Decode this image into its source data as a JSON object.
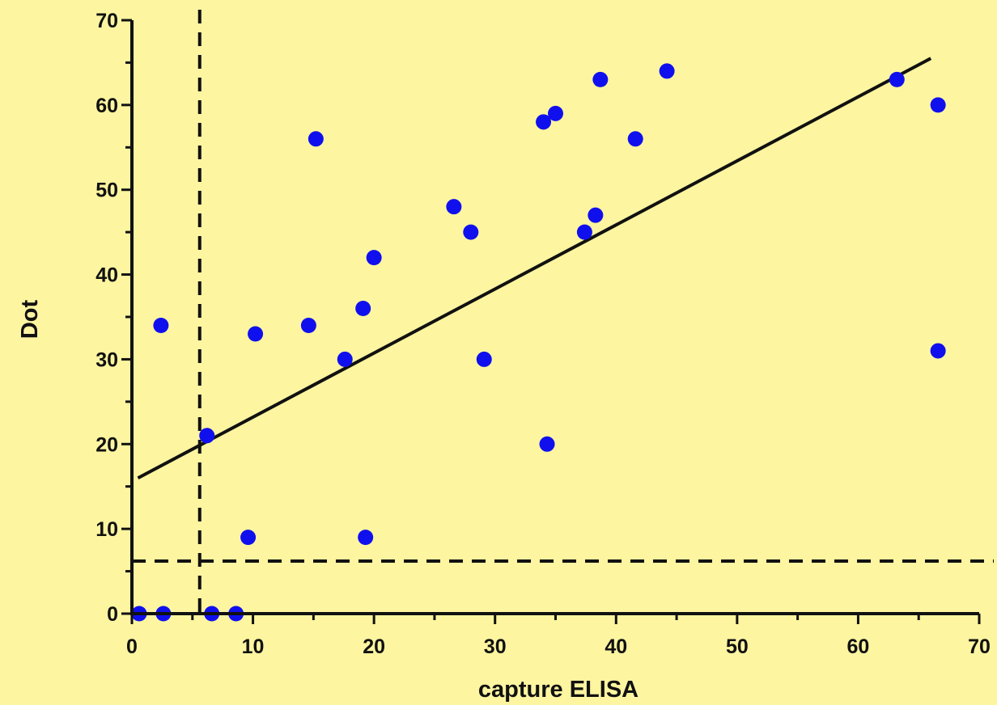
{
  "chart_data": {
    "type": "scatter",
    "title": "",
    "xlabel": "capture ELISA",
    "ylabel": "Dot",
    "xlim": [
      0,
      70
    ],
    "ylim": [
      0,
      70
    ],
    "x_ticks": [
      0,
      10,
      20,
      30,
      40,
      50,
      60,
      70
    ],
    "y_ticks": [
      0,
      10,
      20,
      30,
      40,
      50,
      60,
      70
    ],
    "x_tick_labels": [
      "0",
      "10",
      "20",
      "30",
      "40",
      "50",
      "60",
      "70"
    ],
    "y_tick_labels": [
      "0",
      "10",
      "20",
      "30",
      "40",
      "50",
      "60",
      "70"
    ],
    "grid": false,
    "legend": "none",
    "colors": {
      "background": "#fdf5a0",
      "points": "#1010ee",
      "lines": "#111111"
    },
    "points": [
      {
        "x": 0.6,
        "y": 0
      },
      {
        "x": 2.6,
        "y": 0
      },
      {
        "x": 6.6,
        "y": 0
      },
      {
        "x": 8.6,
        "y": 0
      },
      {
        "x": 2.4,
        "y": 34
      },
      {
        "x": 6.2,
        "y": 21
      },
      {
        "x": 9.6,
        "y": 9
      },
      {
        "x": 10.2,
        "y": 33
      },
      {
        "x": 14.6,
        "y": 34
      },
      {
        "x": 15.2,
        "y": 56
      },
      {
        "x": 17.6,
        "y": 30
      },
      {
        "x": 19.1,
        "y": 36
      },
      {
        "x": 19.3,
        "y": 9
      },
      {
        "x": 20.0,
        "y": 42
      },
      {
        "x": 26.6,
        "y": 48
      },
      {
        "x": 28.0,
        "y": 45
      },
      {
        "x": 29.1,
        "y": 30
      },
      {
        "x": 34.0,
        "y": 58
      },
      {
        "x": 35.0,
        "y": 59
      },
      {
        "x": 34.3,
        "y": 20
      },
      {
        "x": 37.4,
        "y": 45
      },
      {
        "x": 38.3,
        "y": 47
      },
      {
        "x": 38.7,
        "y": 63
      },
      {
        "x": 41.6,
        "y": 56
      },
      {
        "x": 44.2,
        "y": 64
      },
      {
        "x": 63.2,
        "y": 63
      },
      {
        "x": 66.6,
        "y": 60
      },
      {
        "x": 66.6,
        "y": 31
      }
    ],
    "regression_line": {
      "x1": 0.5,
      "y1": 16,
      "x2": 66,
      "y2": 65.5
    },
    "cutoff_lines": {
      "x": 5.6,
      "y": 6.2
    }
  }
}
